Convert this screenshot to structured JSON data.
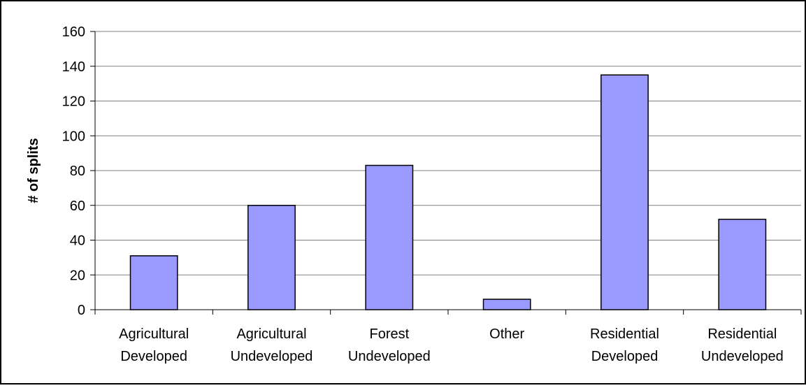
{
  "chart_data": {
    "type": "bar",
    "title": "",
    "xlabel": "",
    "ylabel": "# of splits",
    "ylim": [
      0,
      160
    ],
    "yticks": [
      0,
      20,
      40,
      60,
      80,
      100,
      120,
      140,
      160
    ],
    "grid": true,
    "legend": "none",
    "categories": [
      [
        "Agricultural",
        "Developed"
      ],
      [
        "Agricultural",
        "Undeveloped"
      ],
      [
        "Forest",
        "Undeveloped"
      ],
      [
        "Other"
      ],
      [
        "Residential",
        "Developed"
      ],
      [
        "Residential",
        "Undeveloped"
      ]
    ],
    "values": [
      31,
      60,
      83,
      6,
      135,
      52
    ],
    "colors": {
      "bar_fill": "#9999FF",
      "bar_stroke": "#000000",
      "grid": "#808080",
      "axis": "#000000"
    }
  }
}
